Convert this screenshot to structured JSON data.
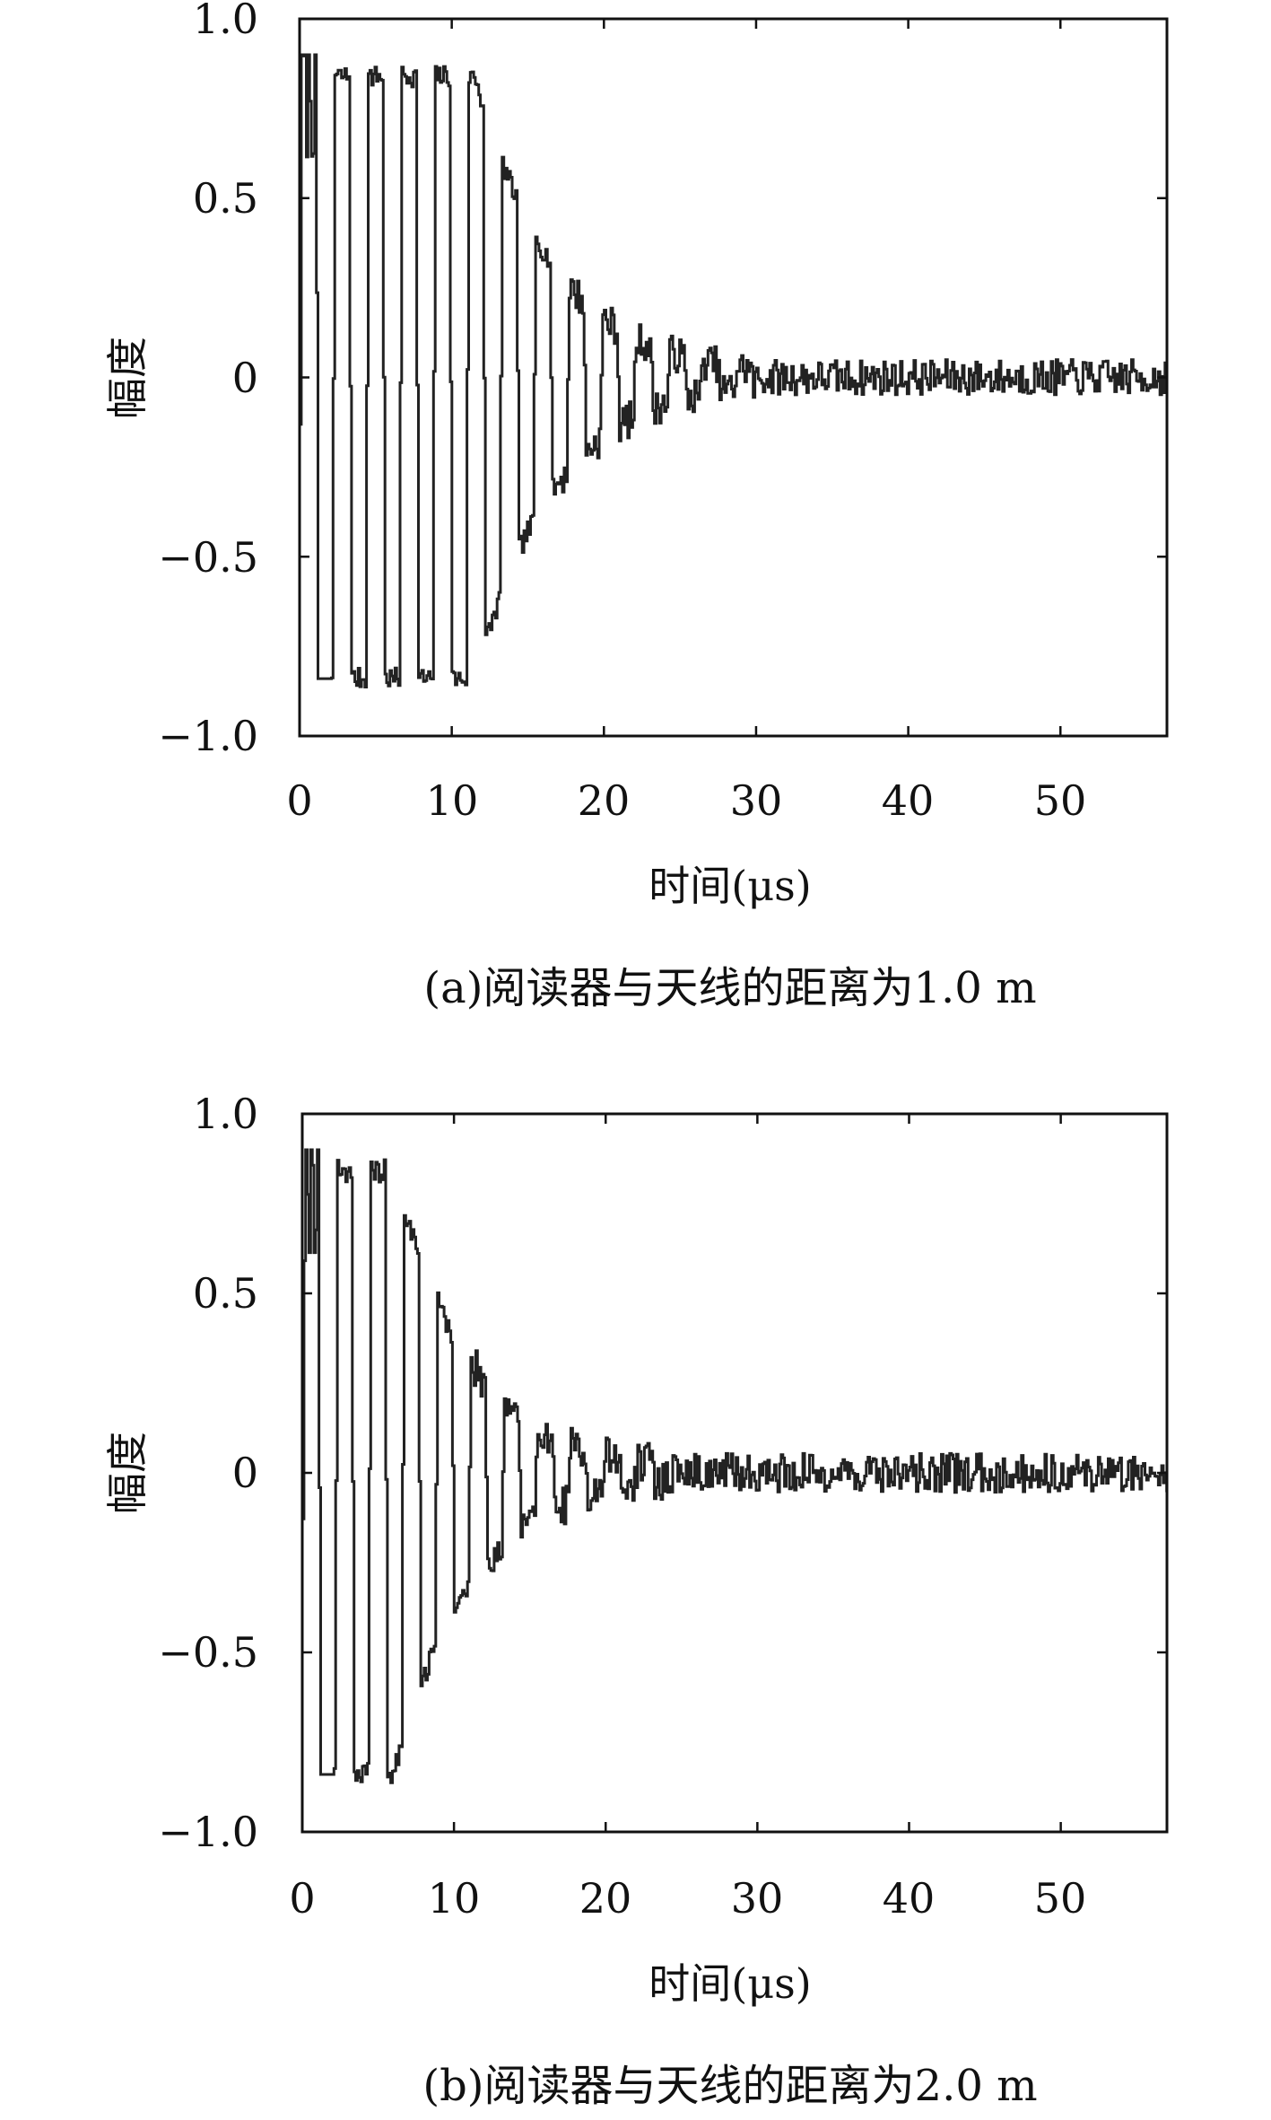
{
  "chart_data": [
    {
      "type": "line",
      "caption": "(a)阅读器与天线的距离为1.0 m",
      "xlabel": "时间(μs)",
      "ylabel": "幅度",
      "xlim": [
        0,
        57
      ],
      "ylim": [
        -1.0,
        1.0
      ],
      "xticks": [
        0,
        10,
        20,
        30,
        40,
        50
      ],
      "xtick_labels": [
        "0",
        "10",
        "20",
        "30",
        "40",
        "50"
      ],
      "yticks": [
        1.0,
        0.5,
        0,
        -0.5,
        -1.0
      ],
      "ytick_labels": [
        "1.0",
        "0.5",
        "0",
        "−0.5",
        "−1.0"
      ],
      "grid": false,
      "signal": {
        "description_values": "square-like damped oscillation",
        "period_us": 2.2,
        "full_amplitude": 0.84,
        "full_amplitude_until_us": 11.5,
        "decay_end_us": 30,
        "noise_amplitude": 0.05
      }
    },
    {
      "type": "line",
      "caption": "(b)阅读器与天线的距离为2.0 m",
      "xlabel": "时间(μs)",
      "ylabel": "幅度",
      "xlim": [
        0,
        57
      ],
      "ylim": [
        -1.0,
        1.0
      ],
      "xticks": [
        0,
        10,
        20,
        30,
        40,
        50
      ],
      "xtick_labels": [
        "0",
        "10",
        "20",
        "30",
        "40",
        "50"
      ],
      "yticks": [
        1.0,
        0.5,
        0,
        -0.5,
        -1.0
      ],
      "ytick_labels": [
        "1.0",
        "0.5",
        "0",
        "−0.5",
        "−1.0"
      ],
      "grid": false,
      "signal": {
        "description_values": "square-like damped oscillation",
        "period_us": 2.2,
        "full_amplitude": 0.84,
        "full_amplitude_until_us": 6,
        "decay_end_us": 24,
        "noise_amplitude": 0.055
      }
    }
  ]
}
